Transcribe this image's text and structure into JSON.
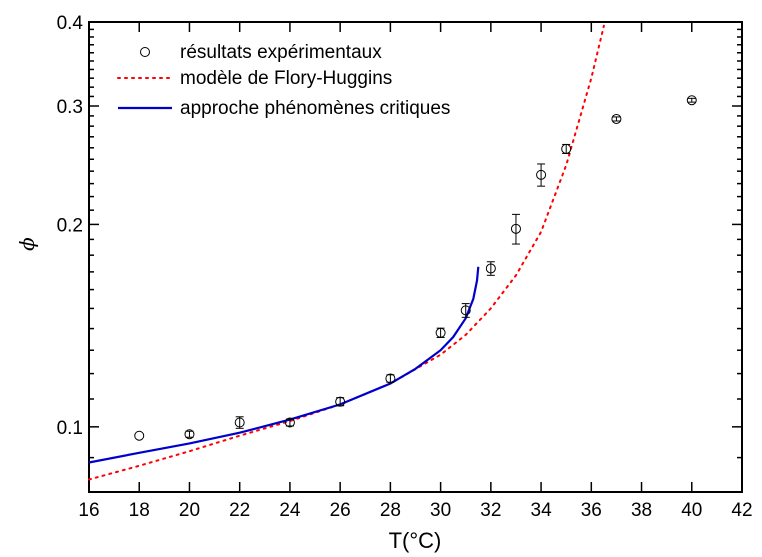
{
  "chart_data": {
    "type": "scatter",
    "xlabel": "T(°C)",
    "ylabel": "ϕ",
    "xlim": [
      16,
      42
    ],
    "ylim": [
      0.08,
      0.4
    ],
    "y_scale": "log",
    "grid": false,
    "legend_position": "top-left",
    "x_ticks": [
      16,
      18,
      20,
      22,
      24,
      26,
      28,
      30,
      32,
      34,
      36,
      38,
      40,
      42
    ],
    "y_ticks": [
      0.1,
      0.2,
      0.3,
      0.4
    ],
    "y_tick_labels": [
      "0.1",
      "0.2",
      "0.3",
      "0.4"
    ],
    "series": [
      {
        "name": "résultats expérimentaux",
        "kind": "markers",
        "marker": "open-circle",
        "color": "#000000",
        "x": [
          18,
          20,
          22,
          24,
          26,
          28,
          30,
          31,
          32,
          33,
          34,
          35,
          37,
          40
        ],
        "y": [
          0.097,
          0.0975,
          0.1015,
          0.1015,
          0.109,
          0.118,
          0.138,
          0.149,
          0.172,
          0.197,
          0.237,
          0.259,
          0.287,
          0.306
        ],
        "err": [
          0,
          0.001,
          0.002,
          0.0012,
          0.0015,
          0.0015,
          0.0022,
          0.0035,
          0.004,
          0.01,
          0.009,
          0.004,
          0.002,
          0.002
        ]
      },
      {
        "name": "modèle de Flory-Huggins",
        "kind": "line",
        "style": "dotted",
        "color": "#ff0000",
        "x": [
          16,
          18,
          20,
          22,
          24,
          26,
          28,
          30,
          31,
          32,
          33,
          34,
          35,
          36,
          36.5
        ],
        "y": [
          0.0835,
          0.0875,
          0.092,
          0.097,
          0.102,
          0.108,
          0.116,
          0.128,
          0.137,
          0.15,
          0.168,
          0.195,
          0.245,
          0.33,
          0.395
        ]
      },
      {
        "name": "approche phénomènes critiques",
        "kind": "line",
        "style": "solid",
        "color": "#0000cc",
        "x": [
          16,
          18,
          20,
          22,
          24,
          26,
          28,
          29,
          30,
          30.5,
          31,
          31.3,
          31.45,
          31.5
        ],
        "y": [
          0.0885,
          0.0915,
          0.0945,
          0.098,
          0.1025,
          0.108,
          0.116,
          0.122,
          0.13,
          0.136,
          0.145,
          0.155,
          0.165,
          0.173
        ]
      }
    ]
  }
}
